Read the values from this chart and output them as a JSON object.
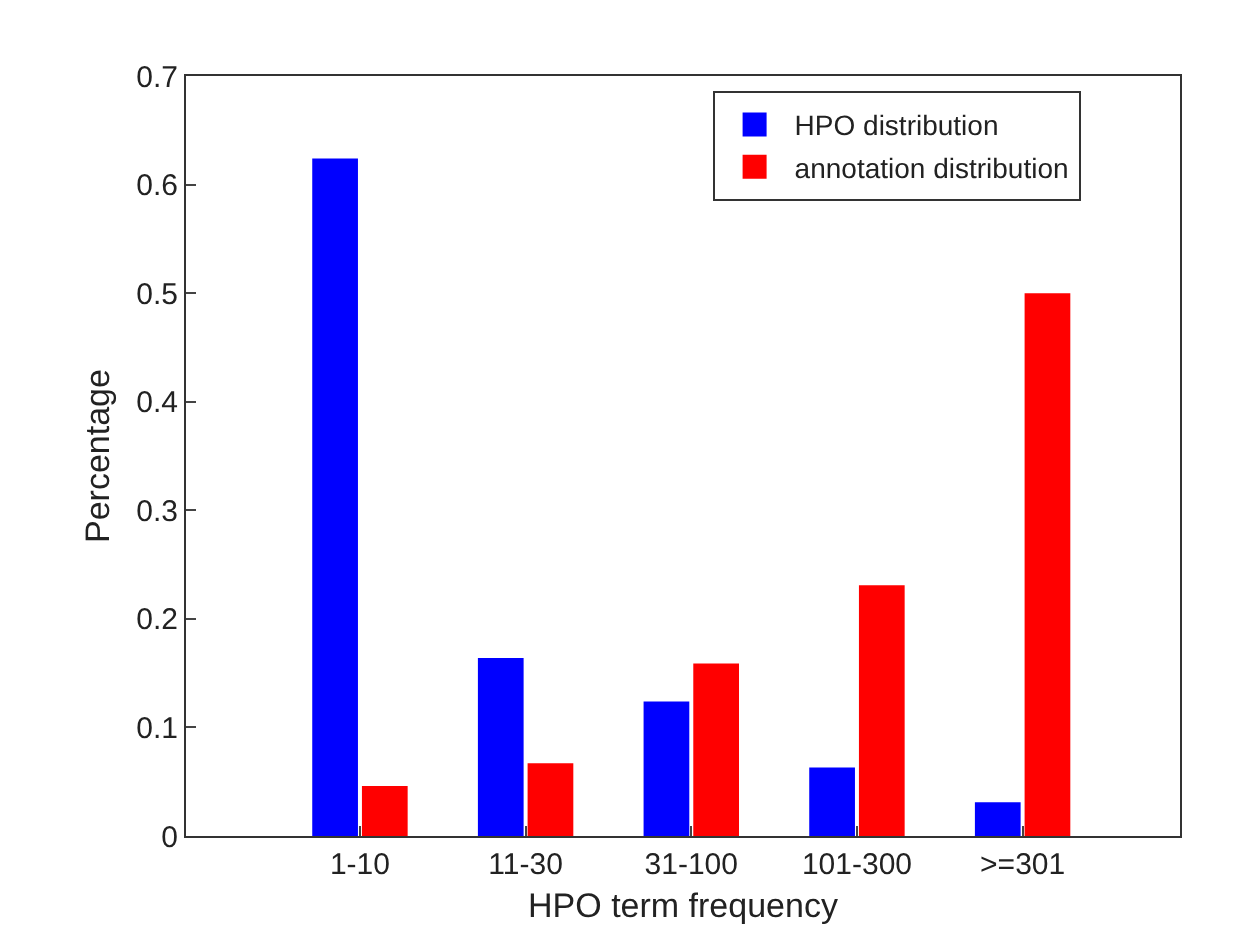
{
  "chart_data": {
    "type": "bar",
    "xlabel": "HPO term frequency",
    "ylabel": "Percentage",
    "categories": [
      "1-10",
      "11-30",
      "31-100",
      "101-300",
      ">=301"
    ],
    "series": [
      {
        "name": "HPO distribution",
        "color": "#0000ff",
        "values": [
          0.624,
          0.164,
          0.124,
          0.063,
          0.031
        ]
      },
      {
        "name": "annotation distribution",
        "color": "#ff0000",
        "values": [
          0.046,
          0.067,
          0.159,
          0.231,
          0.5
        ]
      }
    ],
    "ylim": [
      0,
      0.7
    ],
    "yticks": [
      0,
      0.1,
      0.2,
      0.3,
      0.4,
      0.5,
      0.6,
      0.7
    ],
    "grid": false,
    "legend": "top right"
  }
}
